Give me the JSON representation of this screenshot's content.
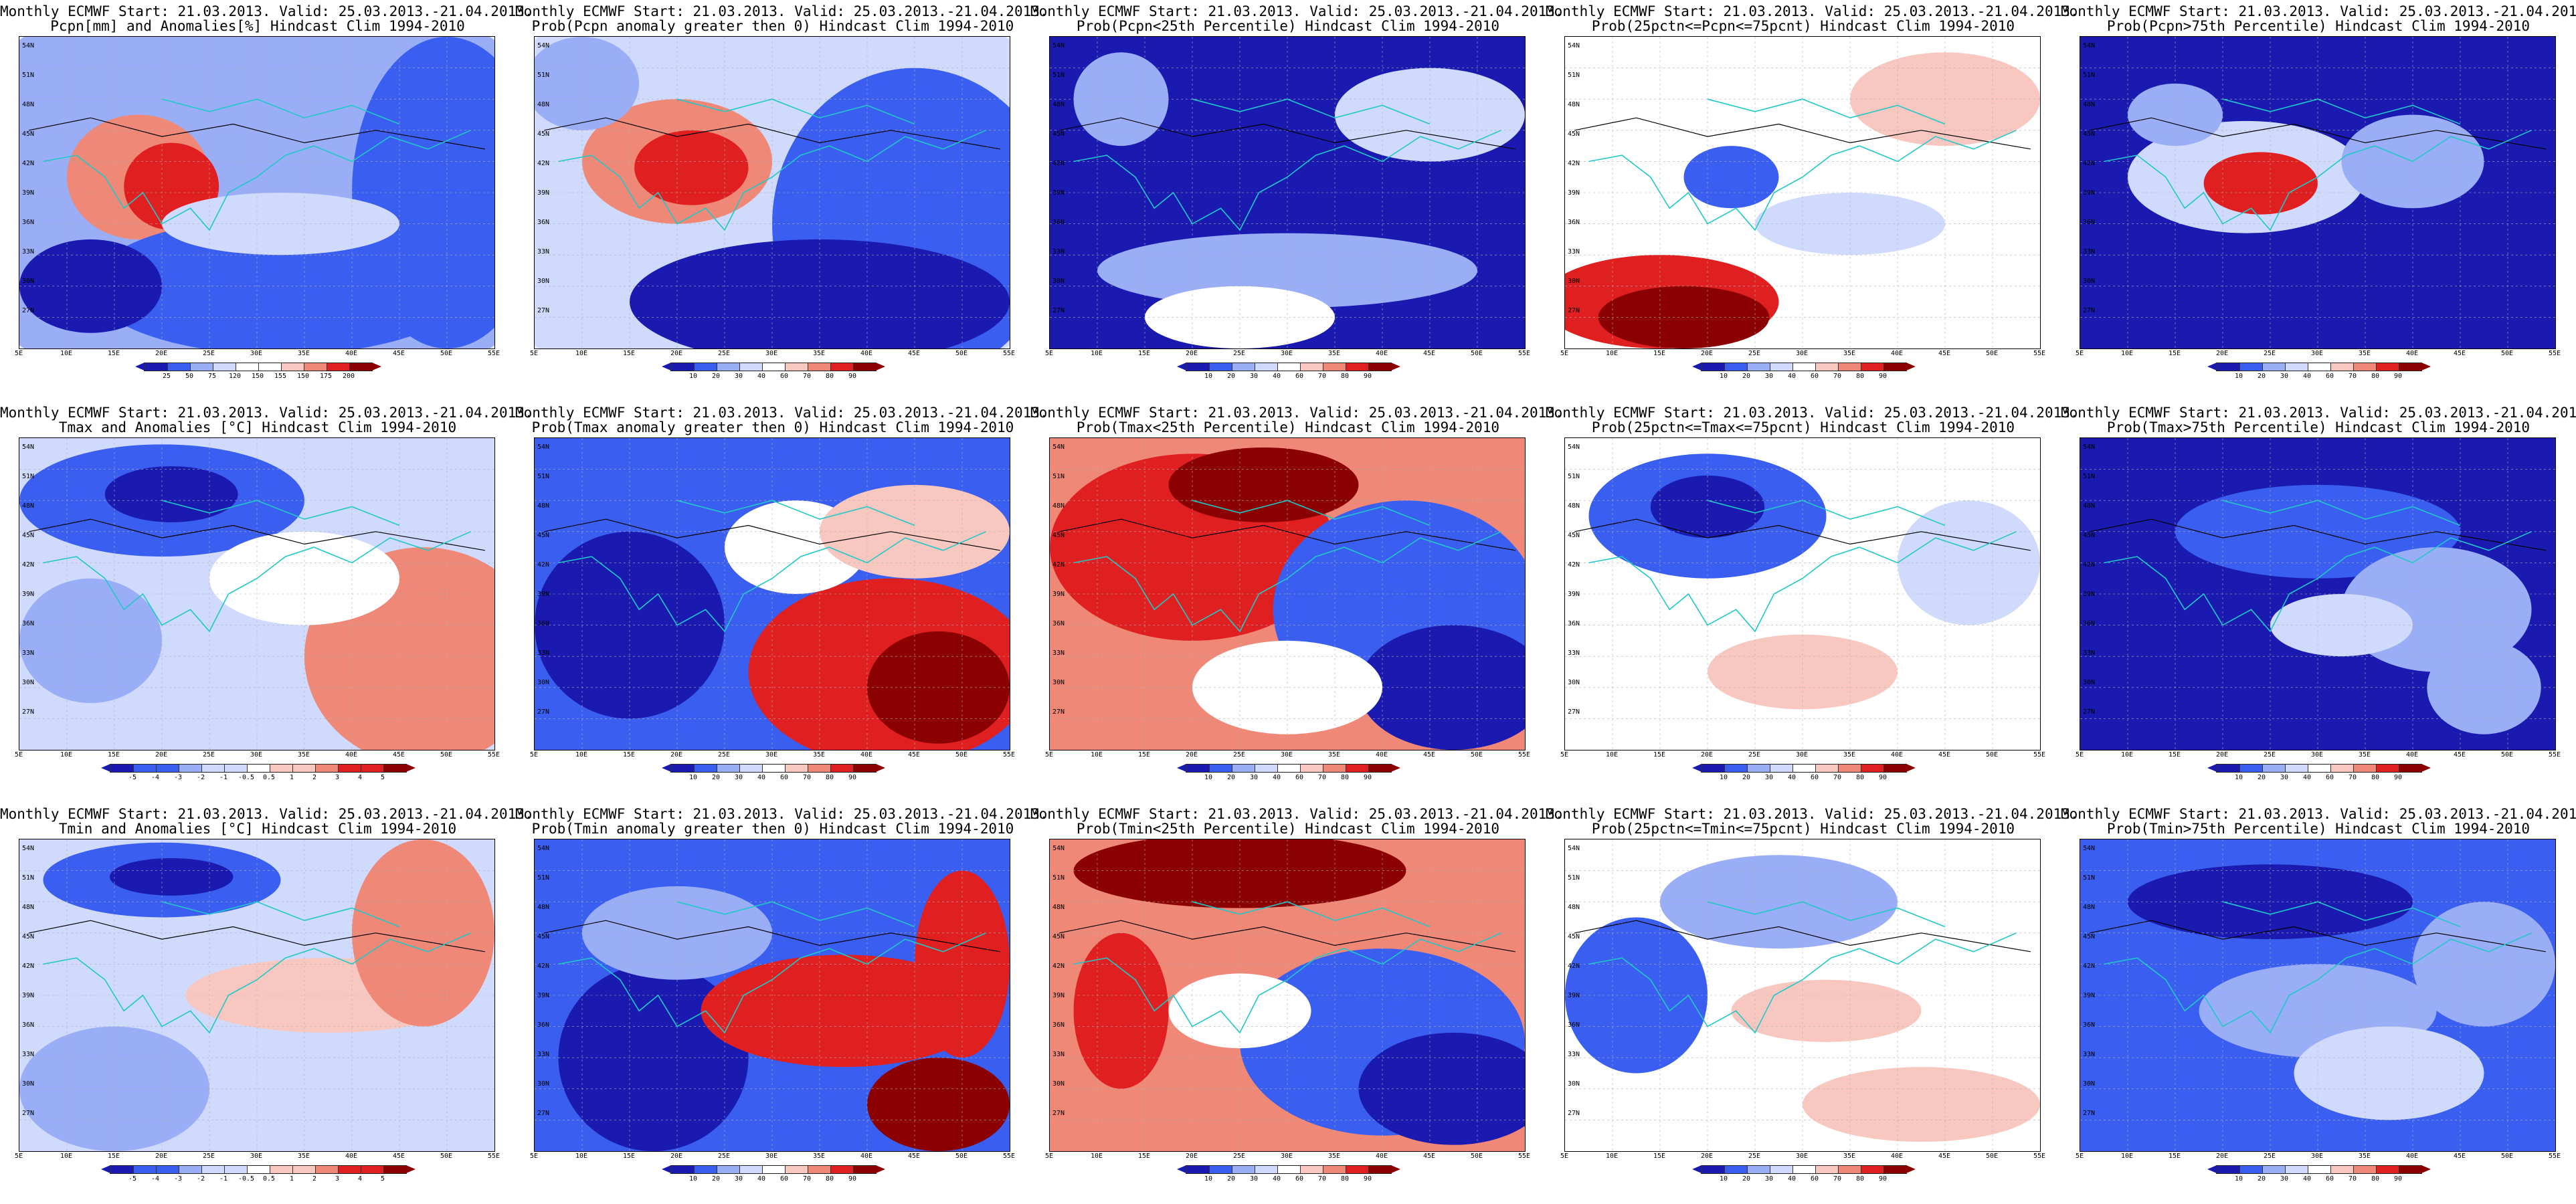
{
  "header": "Monthly ECMWF Start: 21.03.2013. Valid: 25.03.2013.-21.04.2013.",
  "lat_labels": [
    "54N",
    "51N",
    "48N",
    "45N",
    "42N",
    "39N",
    "36N",
    "33N",
    "30N",
    "27N"
  ],
  "lon_labels": [
    "5E",
    "10E",
    "15E",
    "20E",
    "25E",
    "30E",
    "35E",
    "40E",
    "45E",
    "50E",
    "55E"
  ],
  "colors": {
    "deep_blue": "#1a1ab0",
    "blue": "#3a5ff0",
    "light_blue": "#9aaef8",
    "pale_blue": "#d0dafc",
    "white": "#ffffff",
    "pale_red": "#f8c8c0",
    "light_red": "#f08878",
    "red": "#e02020",
    "deep_red": "#8b0000",
    "coast": "#20c8c8",
    "contour": "#000000"
  },
  "panels": [
    {
      "id": "p0",
      "title2": "Pcpn[mm] and Anomalies[%] Hindcast Clim 1994-2010",
      "scheme": "anom",
      "ticks": [
        "25",
        "50",
        "75",
        "120",
        "150",
        "155",
        "150",
        "175",
        "200"
      ]
    },
    {
      "id": "p1",
      "title2": "Prob(Pcpn anomaly greater then 0) Hindcast Clim 1994-2010",
      "scheme": "prob",
      "ticks": [
        "10",
        "20",
        "30",
        "40",
        "60",
        "70",
        "80",
        "90"
      ]
    },
    {
      "id": "p2",
      "title2": "Prob(Pcpn<25th Percentile) Hindcast Clim 1994-2010",
      "scheme": "prob",
      "ticks": [
        "10",
        "20",
        "30",
        "40",
        "60",
        "70",
        "80",
        "90"
      ]
    },
    {
      "id": "p3",
      "title2": "Prob(25pctn<=Pcpn<=75pcnt) Hindcast Clim 1994-2010",
      "scheme": "prob",
      "ticks": [
        "10",
        "20",
        "30",
        "40",
        "60",
        "70",
        "80",
        "90"
      ]
    },
    {
      "id": "p4",
      "title2": "Prob(Pcpn>75th Percentile) Hindcast Clim 1994-2010",
      "scheme": "prob",
      "ticks": [
        "10",
        "20",
        "30",
        "40",
        "60",
        "70",
        "80",
        "90"
      ]
    },
    {
      "id": "p5",
      "title2": "Tmax and Anomalies [°C] Hindcast Clim 1994-2010",
      "scheme": "anom",
      "ticks": [
        "-5",
        "-4",
        "-3",
        "-2",
        "-1",
        "-0.5",
        "0.5",
        "1",
        "2",
        "3",
        "4",
        "5"
      ]
    },
    {
      "id": "p6",
      "title2": "Prob(Tmax anomaly greater then 0) Hindcast Clim 1994-2010",
      "scheme": "prob",
      "ticks": [
        "10",
        "20",
        "30",
        "40",
        "60",
        "70",
        "80",
        "90"
      ]
    },
    {
      "id": "p7",
      "title2": "Prob(Tmax<25th Percentile) Hindcast Clim 1994-2010",
      "scheme": "prob",
      "ticks": [
        "10",
        "20",
        "30",
        "40",
        "60",
        "70",
        "80",
        "90"
      ]
    },
    {
      "id": "p8",
      "title2": "Prob(25pctn<=Tmax<=75pcnt) Hindcast Clim 1994-2010",
      "scheme": "prob",
      "ticks": [
        "10",
        "20",
        "30",
        "40",
        "60",
        "70",
        "80",
        "90"
      ]
    },
    {
      "id": "p9",
      "title2": "Prob(Tmax>75th Percentile) Hindcast Clim 1994-2010",
      "scheme": "prob",
      "ticks": [
        "10",
        "20",
        "30",
        "40",
        "60",
        "70",
        "80",
        "90"
      ]
    },
    {
      "id": "p10",
      "title2": "Tmin and Anomalies [°C] Hindcast Clim 1994-2010",
      "scheme": "anom",
      "ticks": [
        "-5",
        "-4",
        "-3",
        "-2",
        "-1",
        "-0.5",
        "0.5",
        "1",
        "2",
        "3",
        "4",
        "5"
      ]
    },
    {
      "id": "p11",
      "title2": "Prob(Tmin anomaly greater then 0) Hindcast Clim 1994-2010",
      "scheme": "prob",
      "ticks": [
        "10",
        "20",
        "30",
        "40",
        "60",
        "70",
        "80",
        "90"
      ]
    },
    {
      "id": "p12",
      "title2": "Prob(Tmin<25th Percentile) Hindcast Clim 1994-2010",
      "scheme": "prob",
      "ticks": [
        "10",
        "20",
        "30",
        "40",
        "60",
        "70",
        "80",
        "90"
      ]
    },
    {
      "id": "p13",
      "title2": "Prob(25pctn<=Tmin<=75pcnt) Hindcast Clim 1994-2010",
      "scheme": "prob",
      "ticks": [
        "10",
        "20",
        "30",
        "40",
        "60",
        "70",
        "80",
        "90"
      ]
    },
    {
      "id": "p14",
      "title2": "Prob(Tmin>75th Percentile) Hindcast Clim 1994-2010",
      "scheme": "prob",
      "ticks": [
        "10",
        "20",
        "30",
        "40",
        "60",
        "70",
        "80",
        "90"
      ]
    }
  ]
}
